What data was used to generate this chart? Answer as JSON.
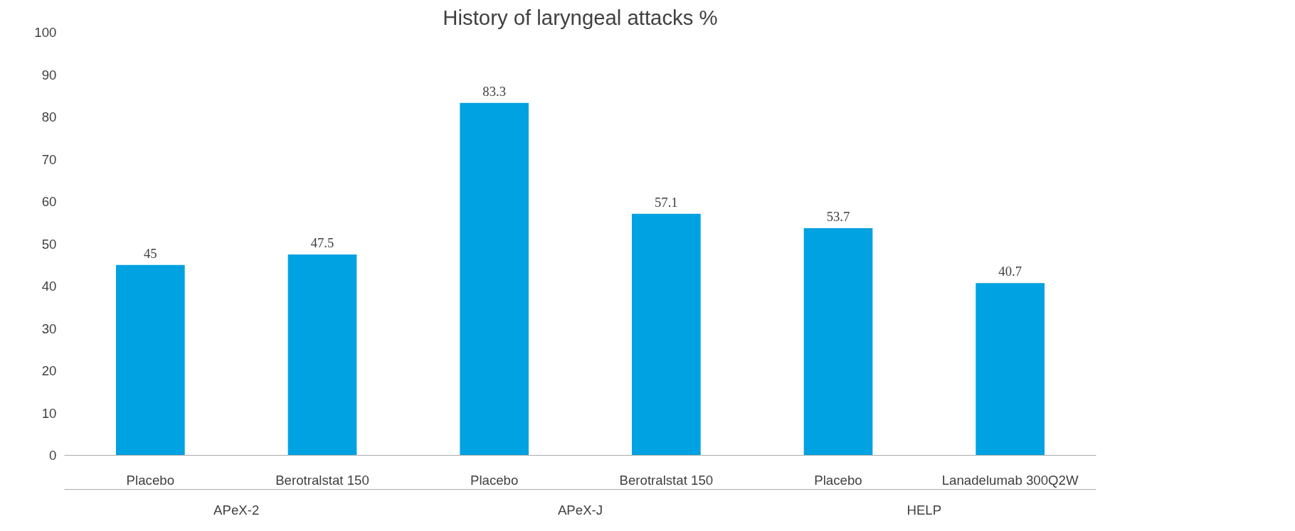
{
  "chart_data": {
    "type": "bar",
    "title": "History of laryngeal attacks %",
    "categories": [
      "Placebo",
      "Berotralstat 150",
      "Placebo",
      "Berotralstat 150",
      "Placebo",
      "Lanadelumab 300Q2W"
    ],
    "values": [
      45,
      47.5,
      83.3,
      57.1,
      53.7,
      40.7
    ],
    "color": "#00a2e1",
    "annotations": [
      "APeX-2",
      "APeX-J",
      "HELP"
    ],
    "ylim": [
      0,
      100
    ],
    "yticks": [
      0,
      10,
      20,
      30,
      40,
      50,
      60,
      70,
      80,
      90,
      100
    ],
    "grid": false,
    "data_labels": true
  }
}
